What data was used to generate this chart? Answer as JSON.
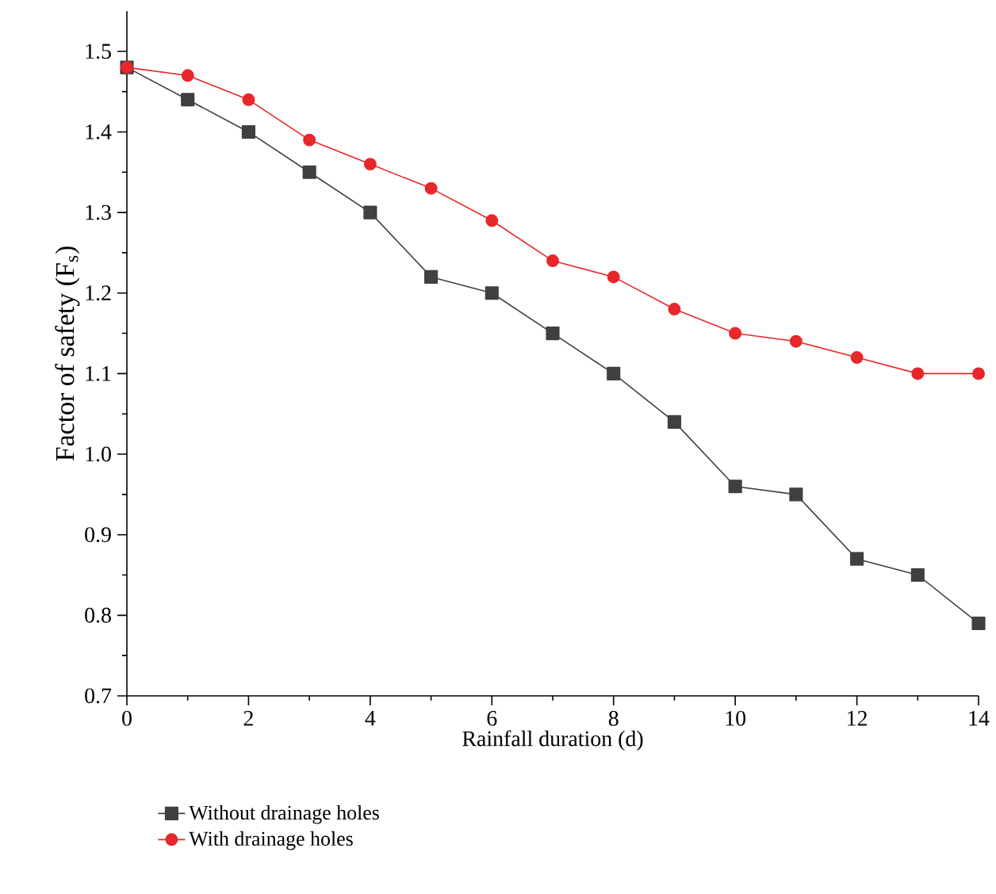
{
  "chart_data": {
    "type": "line",
    "xlabel": "Rainfall duration (d)",
    "ylabel": "Factor of safety (F$_{s}$)",
    "x": [
      0,
      1,
      2,
      3,
      4,
      5,
      6,
      7,
      8,
      9,
      10,
      11,
      12,
      13,
      14
    ],
    "series": [
      {
        "name": "Without drainage holes",
        "color": "#404040",
        "marker": "square",
        "values": [
          1.48,
          1.44,
          1.4,
          1.35,
          1.3,
          1.22,
          1.2,
          1.15,
          1.1,
          1.04,
          0.96,
          0.95,
          0.87,
          0.85,
          0.79
        ]
      },
      {
        "name": "With drainage holes",
        "color": "#e8272a",
        "marker": "circle",
        "values": [
          1.48,
          1.47,
          1.44,
          1.39,
          1.36,
          1.33,
          1.29,
          1.24,
          1.22,
          1.18,
          1.15,
          1.14,
          1.12,
          1.1,
          1.1
        ]
      }
    ],
    "xlim": [
      0,
      14
    ],
    "ylim": [
      0.7,
      1.55
    ],
    "xticks": [
      0,
      2,
      4,
      6,
      8,
      10,
      12,
      14
    ],
    "yticks": [
      0.7,
      0.8,
      0.9,
      {
        "value": 1.0,
        "label": "1.0"
      },
      1.1,
      1.2,
      1.3,
      1.4,
      1.5
    ],
    "legend": "bottom",
    "grid": false
  }
}
